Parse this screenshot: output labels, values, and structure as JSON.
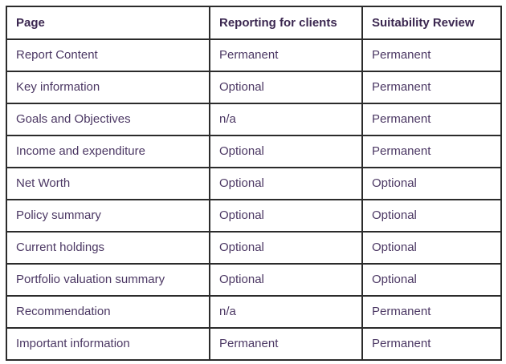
{
  "table": {
    "columns": [
      "Page",
      "Reporting for clients",
      "Suitability Review"
    ],
    "rows": [
      [
        "Report Content",
        "Permanent",
        "Permanent"
      ],
      [
        "Key information",
        "Optional",
        "Permanent"
      ],
      [
        "Goals and Objectives",
        "n/a",
        "Permanent"
      ],
      [
        "Income and expenditure",
        "Optional",
        "Permanent"
      ],
      [
        "Net Worth",
        "Optional",
        "Optional"
      ],
      [
        "Policy summary",
        "Optional",
        "Optional"
      ],
      [
        "Current holdings",
        "Optional",
        "Optional"
      ],
      [
        "Portfolio valuation summary",
        "Optional",
        "Optional"
      ],
      [
        "Recommendation",
        "n/a",
        "Permanent"
      ],
      [
        "Important information",
        "Permanent",
        "Permanent"
      ]
    ],
    "colors": {
      "header_text": "#3b2750",
      "body_text": "#4b3763",
      "border": "#2b2b2b",
      "background": "#ffffff"
    }
  }
}
